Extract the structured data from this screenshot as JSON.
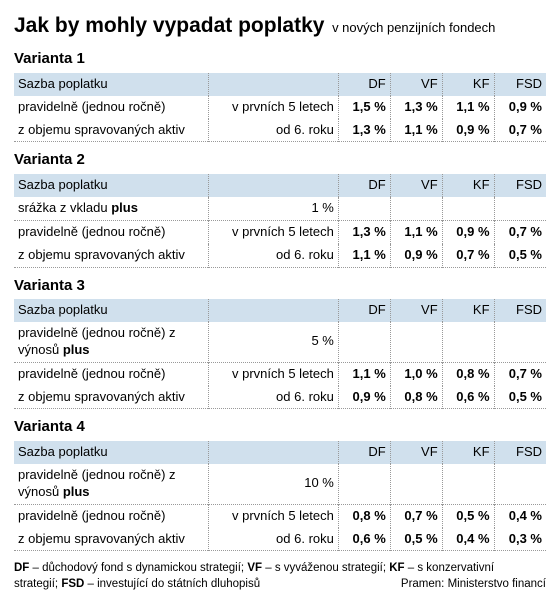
{
  "title": "Jak by mohly vypadat poplatky",
  "subtitle": "v nových penzijních fondech",
  "header_label": "Sazba poplatku",
  "columns": [
    "DF",
    "VF",
    "KF",
    "FSD"
  ],
  "row_labels": {
    "pravidelne": "pravidelně (jednou ročně)",
    "z_objemu": "z objemu spravovaných aktiv",
    "prvnich5": "v prvních 5 letech",
    "od6roku": "od 6. roku",
    "srazka_plus_pre": "srážka z vkladu ",
    "srazka_plus_b": "plus",
    "vynosu_plus_pre": "pravidelně (jednou ročně) z výnosů ",
    "vynosu_plus_b": "plus"
  },
  "variants": [
    {
      "name": "Varianta 1",
      "extra": null,
      "rows": [
        {
          "vals": [
            "1,5 %",
            "1,3 %",
            "1,1 %",
            "0,9 %"
          ]
        },
        {
          "vals": [
            "1,3 %",
            "1,1 %",
            "0,9 %",
            "0,7 %"
          ]
        }
      ]
    },
    {
      "name": "Varianta 2",
      "extra": {
        "kind": "srazka",
        "value": "1 %"
      },
      "rows": [
        {
          "vals": [
            "1,3 %",
            "1,1 %",
            "0,9 %",
            "0,7 %"
          ]
        },
        {
          "vals": [
            "1,1 %",
            "0,9 %",
            "0,7 %",
            "0,5 %"
          ]
        }
      ]
    },
    {
      "name": "Varianta 3",
      "extra": {
        "kind": "vynosu",
        "value": "5 %"
      },
      "rows": [
        {
          "vals": [
            "1,1 %",
            "1,0 %",
            "0,8 %",
            "0,7 %"
          ]
        },
        {
          "vals": [
            "0,9 %",
            "0,8 %",
            "0,6 %",
            "0,5 %"
          ]
        }
      ]
    },
    {
      "name": "Varianta 4",
      "extra": {
        "kind": "vynosu",
        "value": "10 %"
      },
      "rows": [
        {
          "vals": [
            "0,8 %",
            "0,7 %",
            "0,5 %",
            "0,4 %"
          ]
        },
        {
          "vals": [
            "0,6 %",
            "0,5 %",
            "0,4 %",
            "0,3 %"
          ]
        }
      ]
    }
  ],
  "footer": {
    "df_b": "DF",
    "df_t": " – důchodový fond s dynamickou strategií; ",
    "vf_b": "VF",
    "vf_t": " – s vyváženou strategií; ",
    "kf_b": "KF",
    "kf_t": " – s konzervativní",
    "line2a": "strategií; ",
    "fsd_b": "FSD",
    "fsd_t": " – investující do státních dluhopisů",
    "source": "Pramen: Ministerstvo financí"
  }
}
